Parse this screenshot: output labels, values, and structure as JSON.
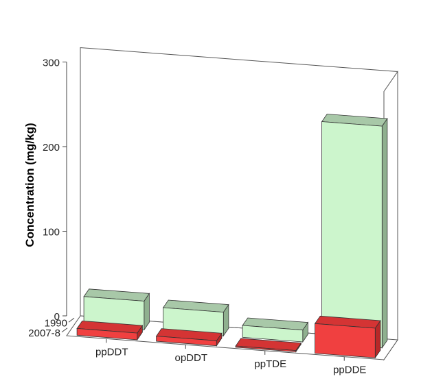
{
  "chart_data": {
    "type": "bar",
    "title": "",
    "ylabel": "Concentration (mg/kg)",
    "xlabel": "",
    "ylim": [
      0,
      300
    ],
    "yticks": [
      0,
      100,
      200,
      300
    ],
    "categories": [
      "ppDDT",
      "opDDT",
      "ppTDE",
      "ppDDE"
    ],
    "series": [
      {
        "name": "1990",
        "values": [
          34,
          28,
          14,
          262
        ],
        "colors": {
          "front": "#ccf5cc",
          "side": "#8fb08f",
          "top": "#a8c8a8"
        }
      },
      {
        "name": "2007-8",
        "values": [
          8,
          6,
          1.5,
          35
        ],
        "colors": {
          "front": "#f04040",
          "side": "#b82828",
          "top": "#d43434"
        }
      }
    ],
    "grid": false,
    "legend": "none"
  }
}
